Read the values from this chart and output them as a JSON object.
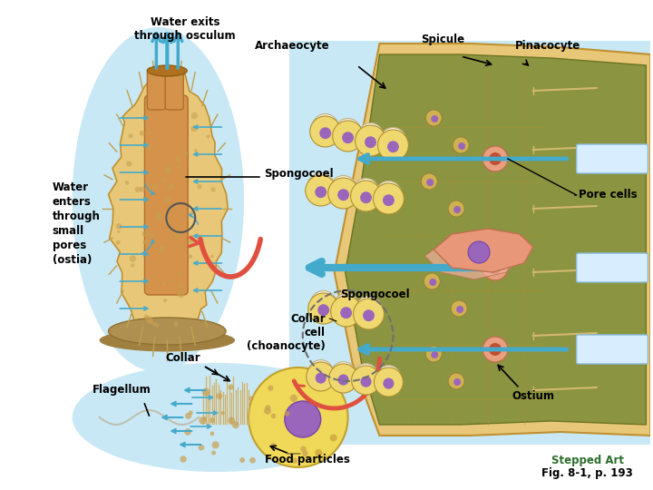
{
  "background_color": "#ffffff",
  "fig_width": 7.2,
  "fig_height": 5.4,
  "dpi": 100,
  "labels": {
    "water_exits": "Water exits\nthrough osculum",
    "spicule": "Spicule",
    "archaeocyte": "Archaeocyte",
    "pinacocyte": "Pinacocyte",
    "water_enters": "Water\nenters\nthrough\nsmall\npores\n(ostia)",
    "spongocoel_left": "Spongocoel",
    "spongocoel_center": "Spongocoel",
    "pore_cells": "Pore cells",
    "collar_cell": "Collar\ncell\n(choanocyte)",
    "collar": "Collar",
    "flagellum": "Flagellum",
    "food_particles": "Food particles",
    "ostium": "Ostium",
    "stepped_art": "Stepped Art",
    "fig_ref": "Fig. 8-1, p. 193"
  },
  "light_blue": "#C8E8F5",
  "sponge_outer": "#E8C878",
  "sponge_inner_canal": "#D4924A",
  "sponge_speckle": "#C8A050",
  "tissue_outer": "#E8C878",
  "tissue_inner_bg": "#8B9440",
  "tissue_wall": "#D4A855",
  "cell_body": "#F0D870",
  "cell_nucleus": "#9966BB",
  "cell_collar_white": "#F5F0E0",
  "pore_cell_pink": "#E8A090",
  "pink_amoebocyte": "#E89880",
  "water_arrow": "#44AACC",
  "red_arrow": "#E05040",
  "black": "#000000",
  "stepped_art_color": "#2D6E2D",
  "spicule_color": "#C8B080",
  "flagellum_color": "#C0C0B0"
}
